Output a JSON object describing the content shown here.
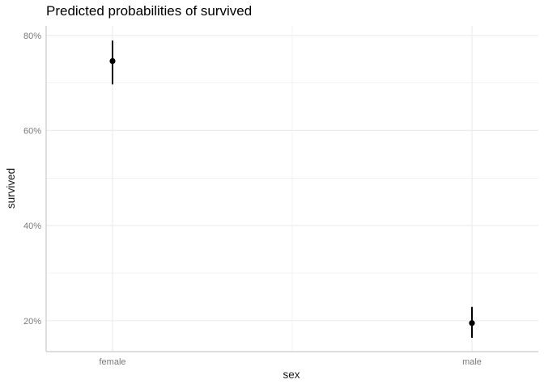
{
  "chart_data": {
    "type": "scatter",
    "title": "Predicted probabilities of survived",
    "xlabel": "sex",
    "ylabel": "survived",
    "categories": [
      "female",
      "male"
    ],
    "values": [
      0.746,
      0.195
    ],
    "ci_low": [
      0.697,
      0.164
    ],
    "ci_high": [
      0.789,
      0.229
    ],
    "ylim": [
      0.135,
      0.82
    ],
    "y_ticks": [
      0.2,
      0.4,
      0.6,
      0.8
    ],
    "y_tick_labels": [
      "20%",
      "40%",
      "60%",
      "80%"
    ],
    "grid": true,
    "colors": {
      "point": "#000000",
      "grid": "#ebebeb",
      "axis": "#bdbdbd"
    }
  }
}
